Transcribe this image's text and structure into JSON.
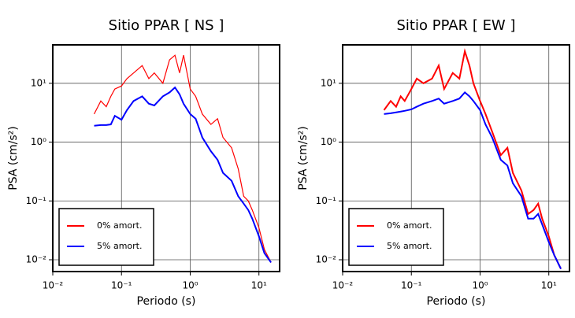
{
  "chart_data": [
    {
      "type": "line",
      "title": "Sitio PPAR [ NS ]",
      "xlabel": "Periodo (s)",
      "ylabel": "PSA (cm/s²)",
      "log_x": true,
      "log_y": true,
      "grid": true,
      "legend": "lower left",
      "xlim": [
        0.01,
        20
      ],
      "ylim": [
        0.0063,
        45
      ],
      "xticks": [
        {
          "value": 0.01,
          "label": "10⁻²"
        },
        {
          "value": 0.1,
          "label": "10⁻¹"
        },
        {
          "value": 1,
          "label": "10⁰"
        },
        {
          "value": 10,
          "label": "10¹"
        }
      ],
      "yticks": [
        {
          "value": 0.01,
          "label": "10⁻²"
        },
        {
          "value": 0.1,
          "label": "10⁻¹"
        },
        {
          "value": 1,
          "label": "10⁰"
        },
        {
          "value": 10,
          "label": "10¹"
        }
      ],
      "x": [
        0.04,
        0.05,
        0.06,
        0.07,
        0.08,
        0.1,
        0.12,
        0.15,
        0.2,
        0.25,
        0.3,
        0.4,
        0.5,
        0.6,
        0.7,
        0.8,
        1.0,
        1.2,
        1.5,
        2,
        2.5,
        3,
        4,
        5,
        6,
        7,
        8,
        10,
        12,
        15
      ],
      "series": [
        {
          "name": "0% amort.",
          "color": "#ff0000",
          "width": 1.2,
          "values": [
            3,
            5,
            4,
            6,
            8,
            9,
            12,
            15,
            20,
            12,
            15,
            10,
            25,
            30,
            15,
            30,
            8,
            6,
            3,
            2,
            2.5,
            1.2,
            0.8,
            0.35,
            0.12,
            0.1,
            0.07,
            0.035,
            0.015,
            0.009
          ]
        },
        {
          "name": "5% amort.",
          "color": "#0000ff",
          "width": 2,
          "values": [
            1.9,
            1.95,
            1.95,
            2.0,
            2.8,
            2.4,
            3.5,
            5,
            6,
            4.5,
            4.2,
            6,
            7,
            8.5,
            6.5,
            4.5,
            3,
            2.5,
            1.2,
            0.7,
            0.5,
            0.3,
            0.22,
            0.12,
            0.09,
            0.07,
            0.05,
            0.025,
            0.013,
            0.009
          ]
        }
      ]
    },
    {
      "type": "line",
      "title": "Sitio PPAR [ EW ]",
      "xlabel": "Periodo (s)",
      "ylabel": "PSA (cm/s²)",
      "log_x": true,
      "log_y": true,
      "grid": true,
      "legend": "lower left",
      "xlim": [
        0.01,
        20
      ],
      "ylim": [
        0.0063,
        45
      ],
      "xticks": [
        {
          "value": 0.01,
          "label": "10⁻²"
        },
        {
          "value": 0.1,
          "label": "10⁻¹"
        },
        {
          "value": 1,
          "label": "10⁰"
        },
        {
          "value": 10,
          "label": "10¹"
        }
      ],
      "yticks": [
        {
          "value": 0.01,
          "label": "10⁻²"
        },
        {
          "value": 0.1,
          "label": "10⁻¹"
        },
        {
          "value": 1,
          "label": "10⁰"
        },
        {
          "value": 10,
          "label": "10¹"
        }
      ],
      "x": [
        0.04,
        0.05,
        0.06,
        0.07,
        0.08,
        0.1,
        0.12,
        0.15,
        0.2,
        0.25,
        0.3,
        0.4,
        0.5,
        0.6,
        0.7,
        0.8,
        1.0,
        1.2,
        1.5,
        2,
        2.5,
        3,
        4,
        5,
        6,
        7,
        8,
        10,
        12,
        15
      ],
      "series": [
        {
          "name": "0% amort.",
          "color": "#ff0000",
          "width": 2,
          "values": [
            3.5,
            5,
            4,
            6,
            5,
            8,
            12,
            10,
            12,
            20,
            8,
            15,
            12,
            35,
            20,
            10,
            5,
            3,
            1.5,
            0.6,
            0.8,
            0.3,
            0.15,
            0.06,
            0.07,
            0.09,
            0.05,
            0.025,
            0.012,
            0.007
          ]
        },
        {
          "name": "5% amort.",
          "color": "#0000ff",
          "width": 2,
          "values": [
            3,
            3.1,
            3.2,
            3.3,
            3.4,
            3.6,
            4,
            4.5,
            5,
            5.5,
            4.5,
            5,
            5.5,
            7,
            6,
            5,
            3.5,
            2,
            1.2,
            0.5,
            0.4,
            0.2,
            0.12,
            0.05,
            0.05,
            0.06,
            0.04,
            0.02,
            0.012,
            0.007
          ]
        }
      ]
    }
  ]
}
